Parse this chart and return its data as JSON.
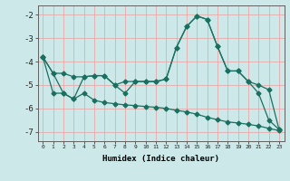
{
  "xlabel": "Humidex (Indice chaleur)",
  "bg_color": "#cce8e8",
  "grid_color": "#e8a8a8",
  "line_color": "#1a7060",
  "xlim": [
    -0.5,
    23.5
  ],
  "ylim": [
    -7.4,
    -1.6
  ],
  "yticks": [
    -7,
    -6,
    -5,
    -4,
    -3,
    -2
  ],
  "xticks": [
    0,
    1,
    2,
    3,
    4,
    5,
    6,
    7,
    8,
    9,
    10,
    11,
    12,
    13,
    14,
    15,
    16,
    17,
    18,
    19,
    20,
    21,
    22,
    23
  ],
  "line1_x": [
    0,
    1,
    2,
    3,
    4,
    5,
    6,
    7,
    8,
    9,
    10,
    11,
    12,
    13,
    14,
    15,
    16,
    17,
    18,
    19,
    20,
    21,
    22,
    23
  ],
  "line1_y": [
    -3.8,
    -4.5,
    -4.5,
    -4.65,
    -4.65,
    -4.6,
    -4.6,
    -5.0,
    -4.85,
    -4.85,
    -4.85,
    -4.85,
    -4.75,
    -3.4,
    -2.5,
    -2.05,
    -2.2,
    -3.35,
    -4.4,
    -4.4,
    -4.85,
    -5.0,
    -5.2,
    -6.9
  ],
  "line2_x": [
    0,
    1,
    2,
    3,
    4,
    5,
    6,
    7,
    8,
    9,
    10,
    11,
    12,
    13,
    14,
    15,
    16,
    17,
    18,
    19,
    20,
    21,
    22,
    23
  ],
  "line2_y": [
    -3.8,
    -4.5,
    -5.35,
    -5.6,
    -4.65,
    -4.6,
    -4.6,
    -5.0,
    -5.35,
    -4.85,
    -4.85,
    -4.85,
    -4.75,
    -3.4,
    -2.5,
    -2.05,
    -2.2,
    -3.35,
    -4.4,
    -4.4,
    -4.85,
    -5.35,
    -6.5,
    -6.9
  ],
  "line3_x": [
    0,
    1,
    2,
    3,
    4,
    5,
    6,
    7,
    8,
    9,
    10,
    11,
    12,
    13,
    14,
    15,
    16,
    17,
    18,
    19,
    20,
    21,
    22,
    23
  ],
  "line3_y": [
    -3.8,
    -5.35,
    -5.35,
    -5.6,
    -5.35,
    -5.65,
    -5.75,
    -5.8,
    -5.85,
    -5.88,
    -5.92,
    -5.95,
    -6.0,
    -6.08,
    -6.15,
    -6.25,
    -6.38,
    -6.48,
    -6.58,
    -6.62,
    -6.68,
    -6.75,
    -6.85,
    -6.95
  ]
}
